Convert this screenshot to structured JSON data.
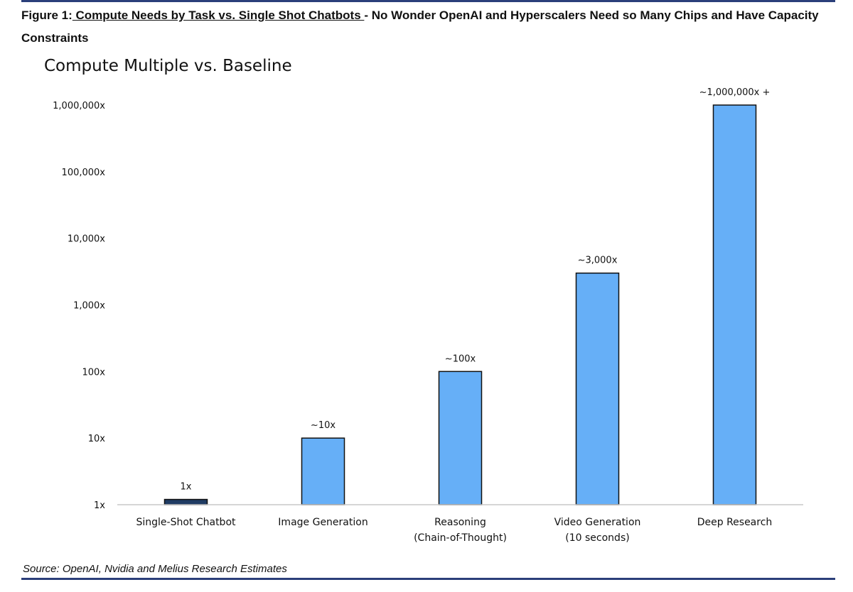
{
  "figure": {
    "label": "Figure 1:",
    "underlined": " Compute Needs by Task vs. Single Shot Chatbots ",
    "rest": "- No Wonder OpenAI and Hyperscalers Need so Many Chips and Have Capacity Constraints"
  },
  "source": "Source: OpenAI, Nvidia and Melius Research Estimates",
  "colors": {
    "rule": "#2b3f7a",
    "bar_baseline": "#1f3b63",
    "bar_other": "#66aff7",
    "bar_stroke": "#111111"
  },
  "chart_data": {
    "type": "bar",
    "title": "Compute Multiple vs. Baseline",
    "yscale": "log",
    "ylim": [
      1,
      1000000
    ],
    "yticks": [
      {
        "value": 1,
        "label": "1x"
      },
      {
        "value": 10,
        "label": "10x"
      },
      {
        "value": 100,
        "label": "100x"
      },
      {
        "value": 1000,
        "label": "1,000x"
      },
      {
        "value": 10000,
        "label": "10,000x"
      },
      {
        "value": 100000,
        "label": "100,000x"
      },
      {
        "value": 1000000,
        "label": "1,000,000x"
      }
    ],
    "grid": false,
    "categories": [
      [
        "Single-Shot Chatbot"
      ],
      [
        "Image Generation"
      ],
      [
        "Reasoning",
        "(Chain-of-Thought)"
      ],
      [
        "Video Generation",
        "(10 seconds)"
      ],
      [
        "Deep Research"
      ]
    ],
    "values": [
      1.2,
      10,
      100,
      3000,
      1000000
    ],
    "data_labels": [
      "1x",
      "~10x",
      "~100x",
      "~3,000x",
      "~1,000,000x +"
    ],
    "bar_colors": [
      "bar_baseline",
      "bar_other",
      "bar_other",
      "bar_other",
      "bar_other"
    ]
  }
}
